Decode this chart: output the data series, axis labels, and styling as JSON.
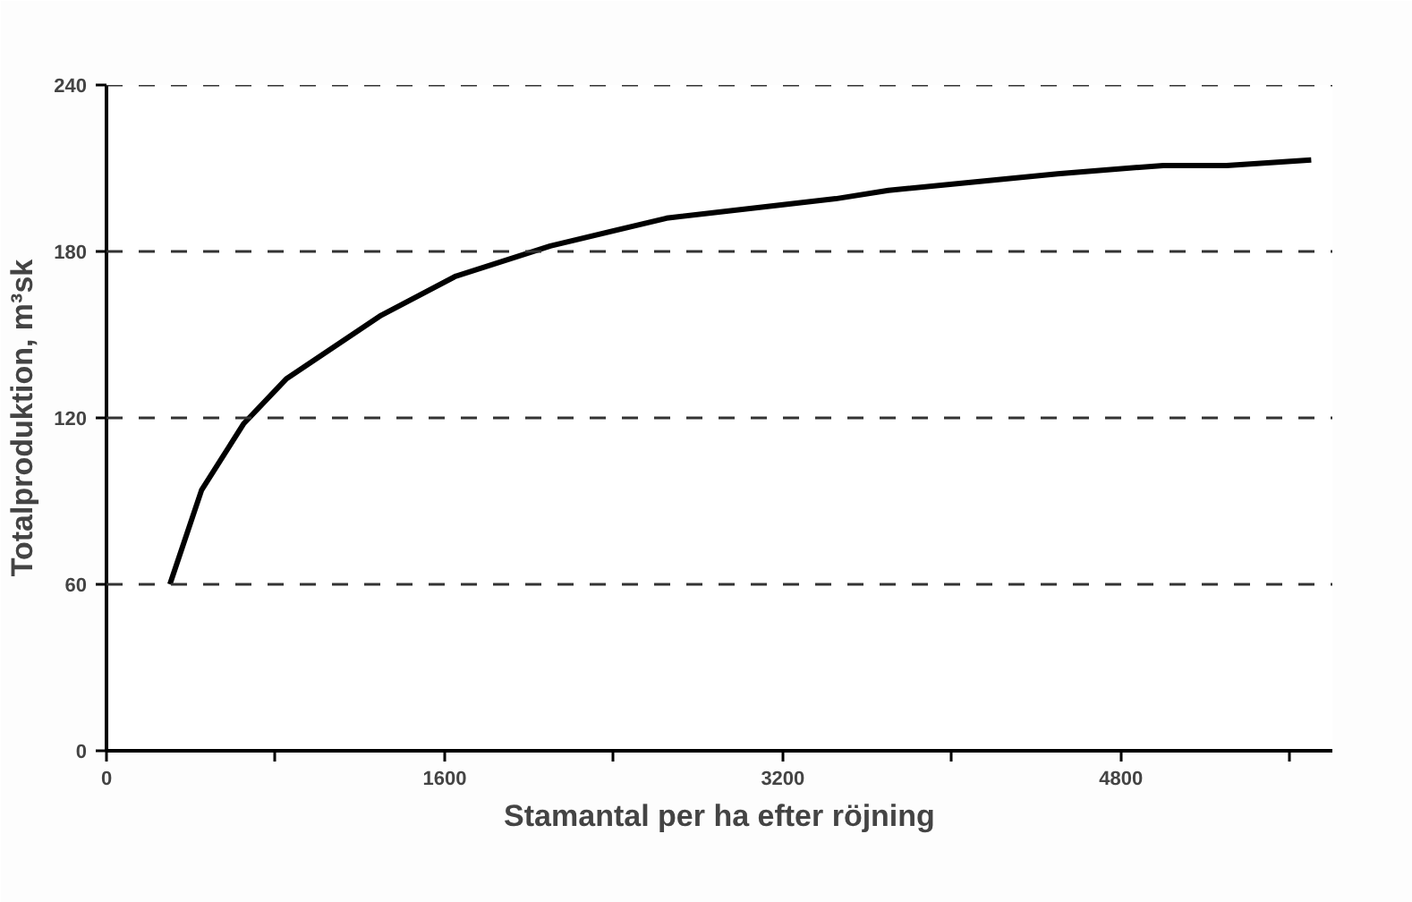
{
  "chart_data": {
    "type": "line",
    "xlabel": "Stamantal per ha efter röjning",
    "ylabel": "Totalproduktion, m³sk",
    "x": [
      300,
      450,
      650,
      850,
      1300,
      1650,
      2100,
      2650,
      3100,
      3450,
      3700,
      4100,
      4500,
      5000,
      5300,
      5700
    ],
    "series": [
      {
        "color": "#000000",
        "values": [
          60,
          94,
          118,
          134,
          157,
          171,
          182,
          192,
          196,
          199,
          202,
          205,
          208,
          211,
          211,
          213
        ]
      }
    ],
    "xlim": [
      0,
      5800
    ],
    "xticks": [
      0,
      {
        "value": 800,
        "label": null
      },
      1600,
      {
        "value": 2400,
        "label": null
      },
      3200,
      {
        "value": 4000,
        "label": null
      },
      4800,
      {
        "value": 5600,
        "label": null
      }
    ],
    "ylim": [
      0,
      240
    ],
    "yticks": [
      0,
      60,
      120,
      180,
      240
    ],
    "grid": "y",
    "marker": "none",
    "line_style": "solid"
  }
}
